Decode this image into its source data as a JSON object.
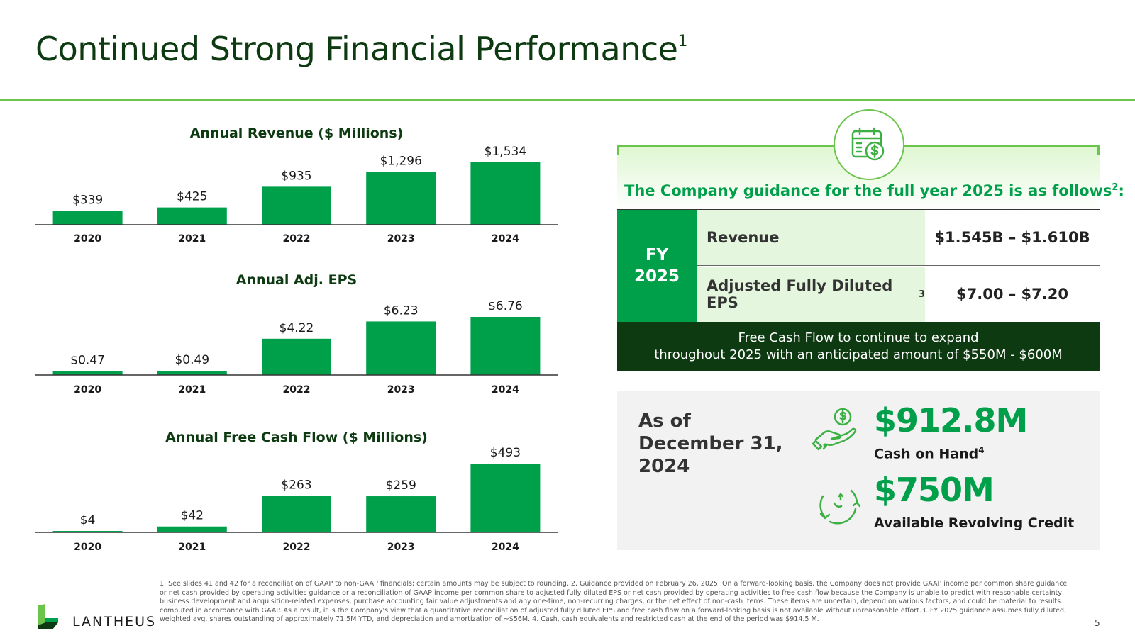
{
  "header": {
    "title": "Continued Strong Financial Performance",
    "title_sup": "1"
  },
  "chart_data": [
    {
      "type": "bar",
      "title": "Annual Revenue ($ Millions)",
      "categories": [
        "2020",
        "2021",
        "2022",
        "2023",
        "2024"
      ],
      "values": [
        339,
        425,
        935,
        1296,
        1534
      ],
      "labels": [
        "$339",
        "$425",
        "$935",
        "$1,296",
        "$1,534"
      ]
    },
    {
      "type": "bar",
      "title": "Annual Adj. EPS",
      "categories": [
        "2020",
        "2021",
        "2022",
        "2023",
        "2024"
      ],
      "values": [
        0.47,
        0.49,
        4.22,
        6.23,
        6.76
      ],
      "labels": [
        "$0.47",
        "$0.49",
        "$4.22",
        "$6.23",
        "$6.76"
      ]
    },
    {
      "type": "bar",
      "title": "Annual Free Cash Flow ($ Millions)",
      "categories": [
        "2020",
        "2021",
        "2022",
        "2023",
        "2024"
      ],
      "values": [
        4,
        42,
        263,
        259,
        493
      ],
      "labels": [
        "$4",
        "$42",
        "$263",
        "$259",
        "$493"
      ]
    }
  ],
  "guidance": {
    "heading": "The Company guidance for the full year 2025 is as follows",
    "heading_sup": "2",
    "heading_colon": ":",
    "fy_line1": "FY",
    "fy_line2": "2025",
    "rows": [
      {
        "label": "Revenue",
        "sup": "",
        "value": "$1.545B – $1.610B"
      },
      {
        "label": "Adjusted Fully Diluted EPS",
        "sup": "3",
        "value": "$7.00 – $7.20"
      }
    ],
    "fcf_line1": "Free Cash Flow to continue to expand",
    "fcf_line2": "throughout 2025 with an anticipated amount of $550M - $600M"
  },
  "cash": {
    "as_of_line1": "As of",
    "as_of_line2": "December 31,",
    "as_of_line3": "2024",
    "cash_value": "$912.8M",
    "cash_label": "Cash on Hand",
    "cash_sup": "4",
    "credit_value": "$750M",
    "credit_label": "Available Revolving Credit"
  },
  "colors": {
    "bar": "#00a04a",
    "dark": "#0e3a12",
    "accent": "#6bc54a"
  },
  "icons": {
    "guidance": "calendar-dollar-icon",
    "cash": "hand-dollar-icon",
    "credit": "revolving-arrows-icon"
  },
  "logo": {
    "text": "LANTHEUS"
  },
  "footnote": "1. See slides 41 and 42 for a reconciliation of GAAP to non-GAAP financials; certain amounts may be subject to rounding. 2. Guidance provided on February 26, 2025. On a forward-looking basis, the Company does not provide GAAP income per common share guidance or net cash provided by operating activities guidance or a reconciliation of GAAP income per common share to adjusted fully diluted EPS or net cash provided by operating activities to free cash flow because the Company is unable to predict with reasonable certainty business development and acquisition-related expenses, purchase accounting fair value adjustments and any one-time, non-recurring charges, or the net effect of non-cash items. These items are uncertain, depend on various factors, and could be material to results computed in accordance with GAAP. As a result, it is the Company's view that a quantitative reconciliation of adjusted fully diluted EPS and free cash flow on a forward-looking basis is not available without unreasonable effort.3. FY 2025 guidance assumes fully diluted, weighted avg. shares outstanding of approximately 71.5M YTD, and depreciation and amortization of ~$56M. 4. Cash, cash equivalents and restricted cash at the end of the period was $914.5 M.",
  "page_number": "5"
}
